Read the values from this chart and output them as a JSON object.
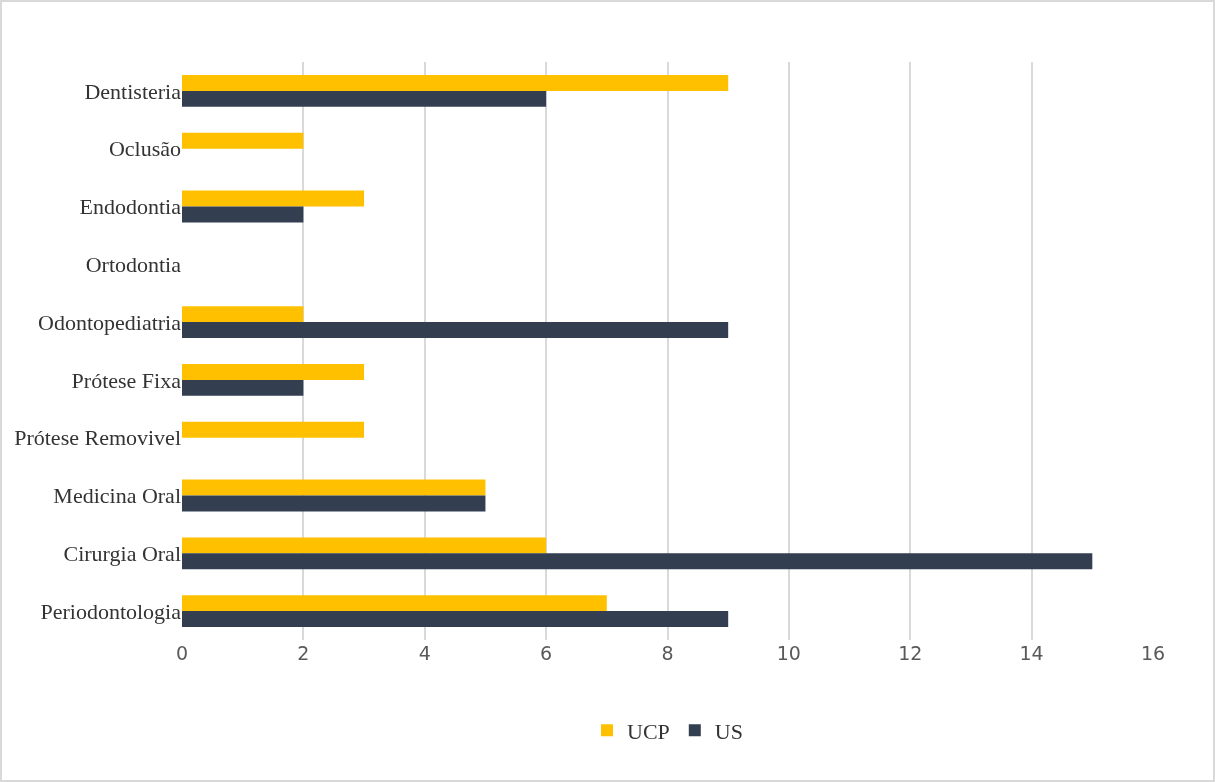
{
  "chart_data": {
    "type": "bar",
    "orientation": "horizontal",
    "categories": [
      "Dentisteria",
      "Oclusão",
      "Endodontia",
      "Ortodontia",
      "Odontopediatria",
      "Prótese Fixa",
      "Prótese Removivel",
      "Medicina Oral",
      "Cirurgia Oral",
      "Periodontologia"
    ],
    "series": [
      {
        "name": "UCP",
        "color": "#ffc000",
        "values": [
          9,
          2,
          3,
          0,
          2,
          3,
          3,
          5,
          6,
          7
        ]
      },
      {
        "name": "US",
        "color": "#333f50",
        "values": [
          6,
          0,
          2,
          0,
          9,
          2,
          0,
          5,
          15,
          9
        ]
      }
    ],
    "xlim": [
      0,
      16
    ],
    "xticks": [
      0,
      2,
      4,
      6,
      8,
      10,
      12,
      14,
      16
    ],
    "grid": "x",
    "legend": "bottom"
  }
}
